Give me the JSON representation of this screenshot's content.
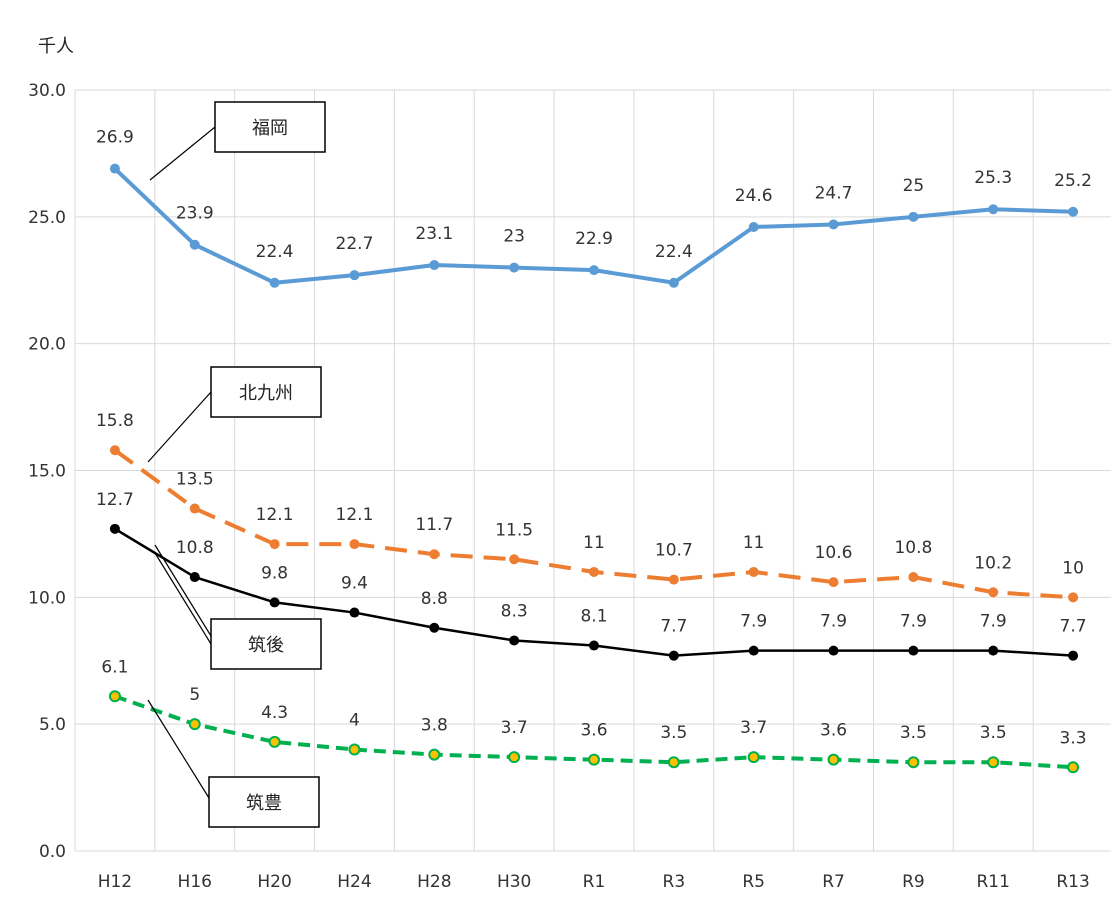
{
  "chart_data": {
    "type": "line",
    "ylabel": "千人",
    "ylim": [
      0,
      30
    ],
    "yticks": [
      "0.0",
      "5.0",
      "10.0",
      "15.0",
      "20.0",
      "25.0",
      "30.0"
    ],
    "ytick_values": [
      0,
      5,
      10,
      15,
      20,
      25,
      30
    ],
    "categories": [
      "H12",
      "H16",
      "H20",
      "H24",
      "H28",
      "H30",
      "R1",
      "R3",
      "R5",
      "R7",
      "R9",
      "R11",
      "R13"
    ],
    "grid": true,
    "series": [
      {
        "name": "福岡",
        "values": [
          26.9,
          23.9,
          22.4,
          22.7,
          23.1,
          23.0,
          22.9,
          22.4,
          24.6,
          24.7,
          25.0,
          25.3,
          25.2
        ],
        "labels": [
          "26.9",
          "23.9",
          "22.4",
          "22.7",
          "23.1",
          "23",
          "22.9",
          "22.4",
          "24.6",
          "24.7",
          "25",
          "25.3",
          "25.2"
        ],
        "color": "#5b9bd5",
        "marker_color": "#5b9bd5",
        "dash": ""
      },
      {
        "name": "北九州",
        "values": [
          15.8,
          13.5,
          12.1,
          12.1,
          11.7,
          11.5,
          11.0,
          10.7,
          11.0,
          10.6,
          10.8,
          10.2,
          10.0
        ],
        "labels": [
          "15.8",
          "13.5",
          "12.1",
          "12.1",
          "11.7",
          "11.5",
          "11",
          "10.7",
          "11",
          "10.6",
          "10.8",
          "10.2",
          "10"
        ],
        "color": "#ed7d31",
        "marker_color": "#ed7d31",
        "dash": "22 11"
      },
      {
        "name": "筑後",
        "values": [
          12.7,
          10.8,
          9.8,
          9.4,
          8.8,
          8.3,
          8.1,
          7.7,
          7.9,
          7.9,
          7.9,
          7.9,
          7.7
        ],
        "labels": [
          "12.7",
          "10.8",
          "9.8",
          "9.4",
          "8.8",
          "8.3",
          "8.1",
          "7.7",
          "7.9",
          "7.9",
          "7.9",
          "7.9",
          "7.7"
        ],
        "color": "#000000",
        "marker_color": "#000000",
        "dash": ""
      },
      {
        "name": "筑豊",
        "values": [
          6.1,
          5.0,
          4.3,
          4.0,
          3.8,
          3.7,
          3.6,
          3.5,
          3.7,
          3.6,
          3.5,
          3.5,
          3.3
        ],
        "labels": [
          "6.1",
          "5",
          "4.3",
          "4",
          "3.8",
          "3.7",
          "3.6",
          "3.5",
          "3.7",
          "3.6",
          "3.5",
          "3.5",
          "3.3"
        ],
        "color": "#00b050",
        "marker_color": "#ffc000",
        "dash": "12 7"
      }
    ]
  }
}
